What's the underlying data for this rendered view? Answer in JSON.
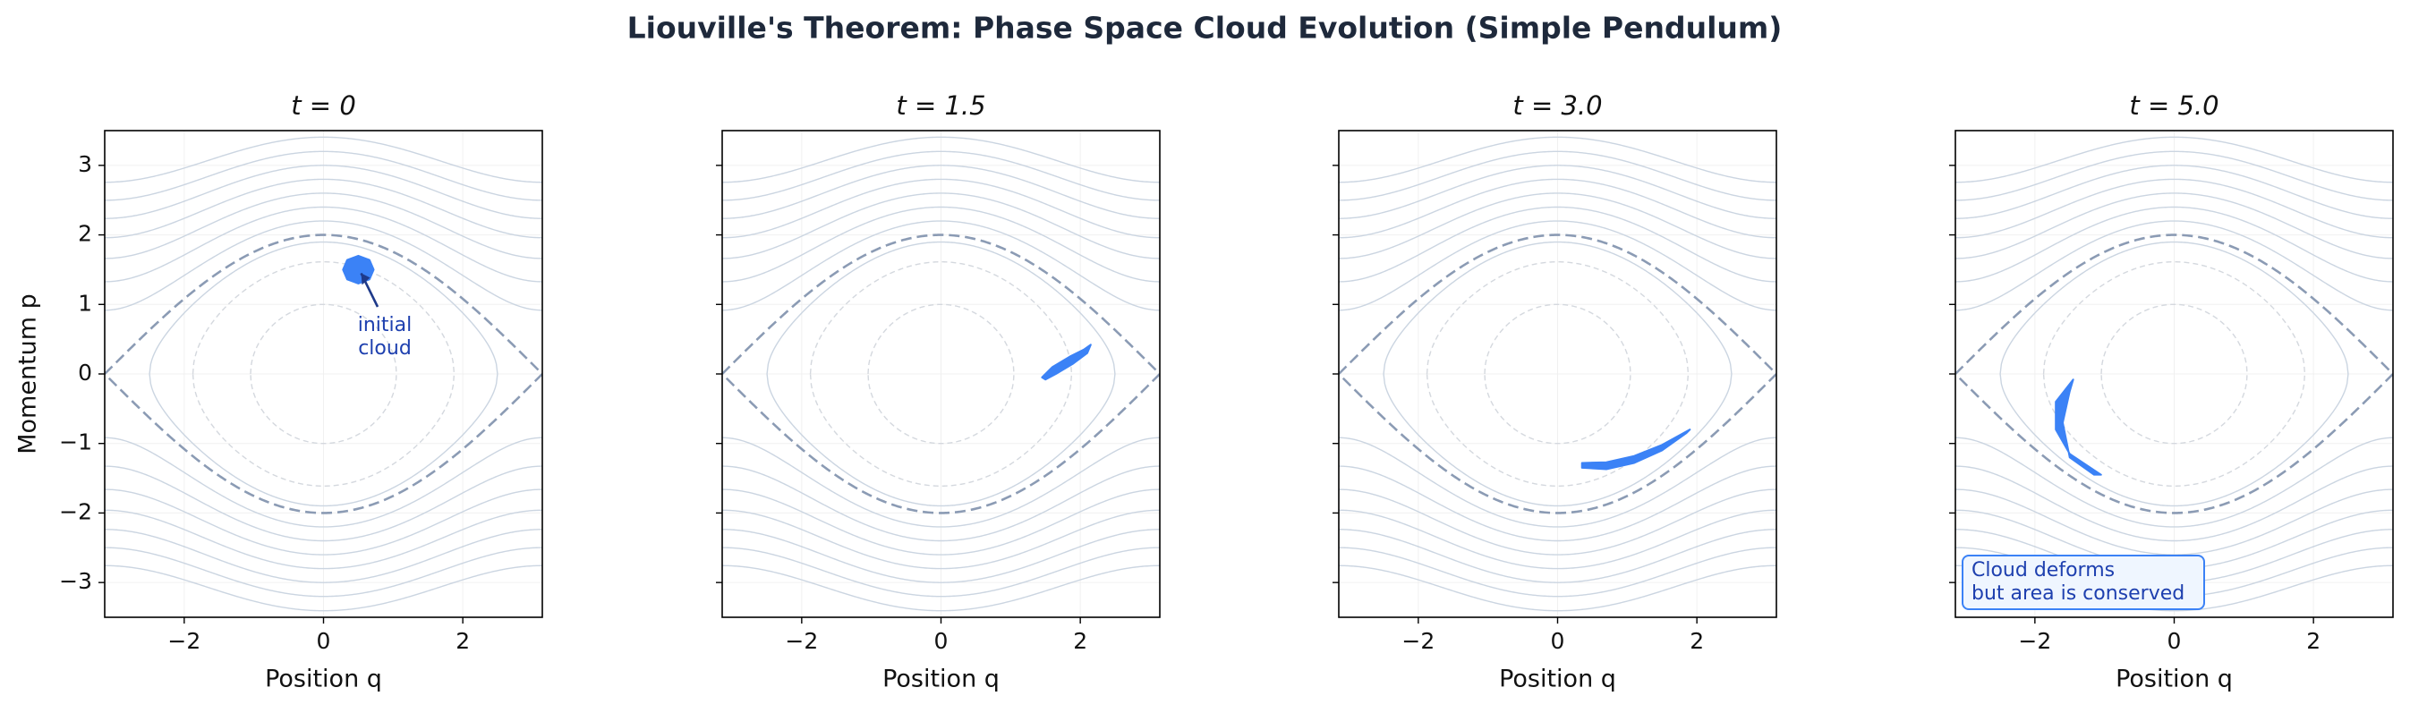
{
  "title": "Liouville's Theorem: Phase Space Cloud Evolution (Simple Pendulum)",
  "chart_data": [
    {
      "type": "cloud",
      "title": "t = 0",
      "xlabel": "Position q",
      "ylabel": "Momentum p",
      "xlim": [
        -3.1416,
        3.1416
      ],
      "ylim": [
        -3.5,
        3.5
      ],
      "xticks": [
        {
          "value": -2,
          "label": "−2"
        },
        0,
        2
      ],
      "yticks": [
        {
          "value": -3,
          "label": "−3"
        },
        {
          "value": -2,
          "label": "−2"
        },
        {
          "value": -1,
          "label": "−1"
        },
        0,
        1,
        2,
        3
      ],
      "grid": true,
      "contour_levels": [
        0.8,
        1.42,
        1.88,
        2.38,
        2.92,
        3.5,
        4.12,
        4.8
      ],
      "dashed_levels": [
        -0.5,
        0.3
      ],
      "separatrix_level": 1,
      "color": "#3b82f6",
      "cloud": {
        "x": [
          0.72,
          0.66,
          0.5,
          0.34,
          0.28,
          0.34,
          0.5,
          0.66
        ],
        "y": [
          1.5,
          1.64,
          1.7,
          1.64,
          1.5,
          1.36,
          1.3,
          1.36
        ]
      },
      "annotation": [
        "initial",
        "cloud"
      ]
    },
    {
      "type": "cloud",
      "title": "t = 1.5",
      "xlabel": "Position q",
      "xlim": [
        -3.1416,
        3.1416
      ],
      "ylim": [
        -3.5,
        3.5
      ],
      "xticks": [
        {
          "value": -2,
          "label": "−2"
        },
        0,
        2
      ],
      "yticks": [
        -3,
        -2,
        -1,
        0,
        1,
        2,
        3
      ],
      "grid": true,
      "contour_levels": [
        0.8,
        1.42,
        1.88,
        2.38,
        2.92,
        3.5,
        4.12,
        4.8
      ],
      "dashed_levels": [
        -0.5,
        0.3
      ],
      "separatrix_level": 1,
      "color": "#3b82f6",
      "cloud": {
        "x": [
          1.45,
          1.6,
          1.85,
          2.05,
          2.15,
          2.1,
          1.9,
          1.65,
          1.5
        ],
        "y": [
          -0.05,
          0.1,
          0.25,
          0.35,
          0.42,
          0.3,
          0.15,
          0.0,
          -0.08
        ]
      }
    },
    {
      "type": "cloud",
      "title": "t = 3.0",
      "xlabel": "Position q",
      "xlim": [
        -3.1416,
        3.1416
      ],
      "ylim": [
        -3.5,
        3.5
      ],
      "xticks": [
        {
          "value": -2,
          "label": "−2"
        },
        0,
        2
      ],
      "yticks": [
        -3,
        -2,
        -1,
        0,
        1,
        2,
        3
      ],
      "grid": true,
      "contour_levels": [
        0.8,
        1.42,
        1.88,
        2.38,
        2.92,
        3.5,
        4.12,
        4.8
      ],
      "dashed_levels": [
        -0.5,
        0.3
      ],
      "separatrix_level": 1,
      "color": "#3b82f6",
      "cloud": {
        "x": [
          0.35,
          0.7,
          1.1,
          1.5,
          1.9,
          1.85,
          1.5,
          1.1,
          0.7,
          0.35
        ],
        "y": [
          -1.28,
          -1.27,
          -1.18,
          -1.02,
          -0.8,
          -0.85,
          -1.1,
          -1.28,
          -1.37,
          -1.35
        ]
      }
    },
    {
      "type": "cloud",
      "title": "t = 5.0",
      "xlabel": "Position q",
      "xlim": [
        -3.1416,
        3.1416
      ],
      "ylim": [
        -3.5,
        3.5
      ],
      "xticks": [
        {
          "value": -2,
          "label": "−2"
        },
        0,
        2
      ],
      "yticks": [
        -3,
        -2,
        -1,
        0,
        1,
        2,
        3
      ],
      "grid": true,
      "contour_levels": [
        0.8,
        1.42,
        1.88,
        2.38,
        2.92,
        3.5,
        4.12,
        4.8
      ],
      "dashed_levels": [
        -0.5,
        0.3
      ],
      "separatrix_level": 1,
      "color": "#3b82f6",
      "cloud": {
        "x": [
          -1.45,
          -1.7,
          -1.7,
          -1.5,
          -1.05,
          -1.15,
          -1.5,
          -1.6,
          -1.5
        ],
        "y": [
          -0.08,
          -0.4,
          -0.8,
          -1.15,
          -1.45,
          -1.45,
          -1.2,
          -0.7,
          -0.25
        ]
      },
      "note": [
        "Cloud deforms",
        "but area is conserved"
      ]
    }
  ]
}
